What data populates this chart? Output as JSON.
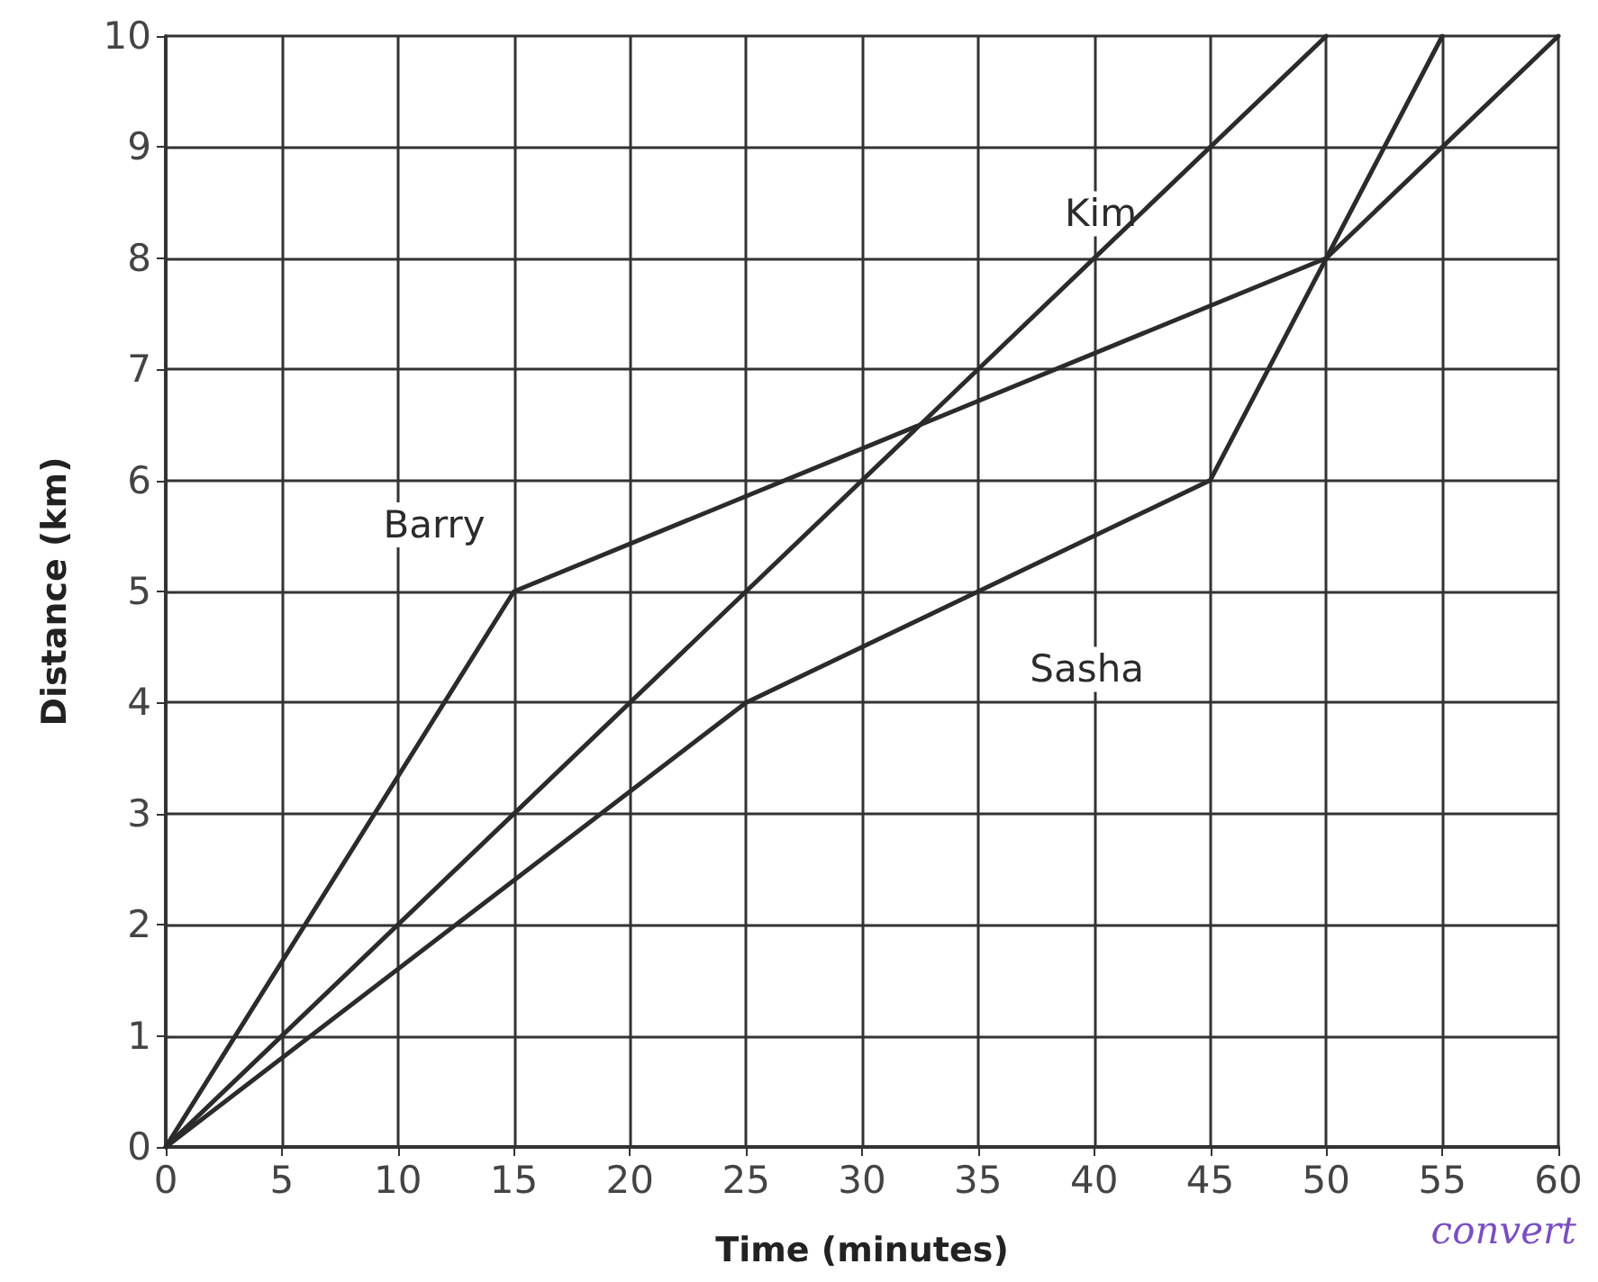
{
  "chart_data": {
    "type": "line",
    "xlabel": "Time (minutes)",
    "ylabel": "Distance (km)",
    "xlim": [
      0,
      60
    ],
    "xticks": [
      0,
      5,
      10,
      15,
      20,
      25,
      30,
      35,
      40,
      45,
      50,
      55,
      60
    ],
    "ylim": [
      0,
      10
    ],
    "yticks": [
      0,
      1,
      2,
      3,
      4,
      5,
      6,
      7,
      8,
      9,
      10
    ],
    "grid": true,
    "marker": "none",
    "line_style": "solid",
    "legend": false,
    "series": [
      {
        "name": "Barry",
        "color": "#2b2b2b",
        "x": [
          0,
          15,
          50,
          60
        ],
        "values": [
          0,
          5,
          8,
          10
        ]
      },
      {
        "name": "Kim",
        "color": "#2b2b2b",
        "x": [
          0,
          50
        ],
        "values": [
          0,
          10
        ]
      },
      {
        "name": "Sasha",
        "color": "#2b2b2b",
        "x": [
          0,
          25,
          45,
          50,
          55
        ],
        "values": [
          0,
          4,
          6,
          8,
          10
        ]
      }
    ],
    "annotations": [
      "convert"
    ]
  }
}
